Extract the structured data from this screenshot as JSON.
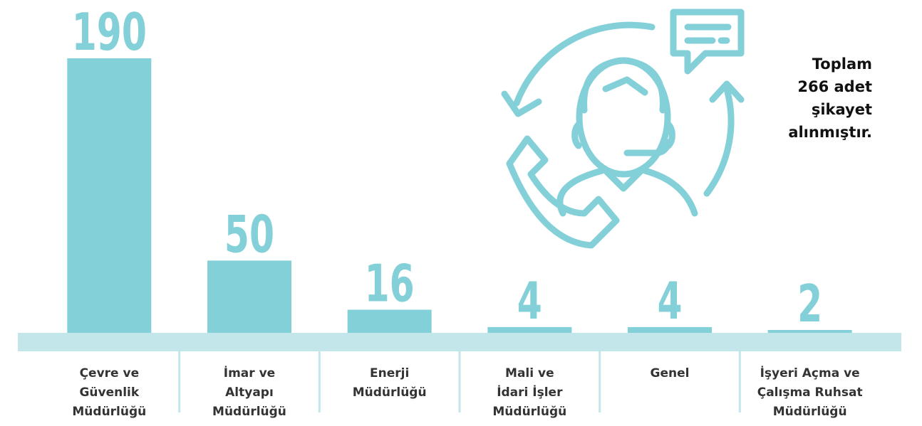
{
  "chart_data": {
    "type": "bar",
    "categories": [
      "Çevre ve\nGüvenlik\nMüdürlüğü",
      "İmar ve\nAltyapı\nMüdürlüğü",
      "Enerji\nMüdürlüğü",
      "Mali ve\nİdari İşler\nMüdürlüğü",
      "Genel",
      "İşyeri Açma ve\nÇalışma Ruhsat\nMüdürlüğü"
    ],
    "values": [
      190,
      50,
      16,
      4,
      4,
      2
    ],
    "color": "#84d0d8",
    "annotation": "Toplam\n266 adet\nşikayet\nalınmıştır."
  }
}
